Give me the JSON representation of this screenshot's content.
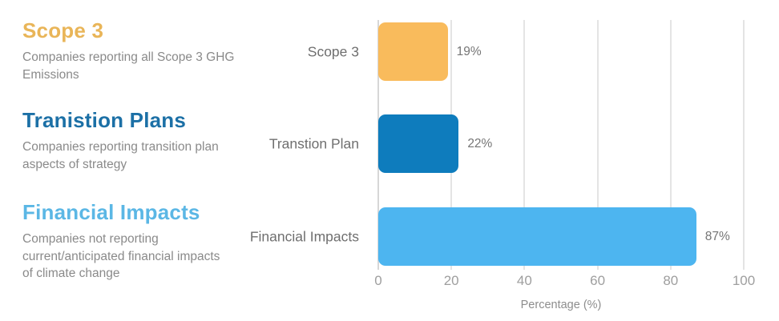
{
  "left_panel": {
    "sections": [
      {
        "title": "Scope 3",
        "title_color": "#E9B558",
        "description": "Companies reporting all Scope 3 GHG\nEmissions"
      },
      {
        "title": "Tranistion Plans",
        "title_color": "#1C70A6",
        "description": "Companies reporting transition plan\naspects of strategy"
      },
      {
        "title": "Financial Impacts",
        "title_color": "#5BB7E5",
        "description": "Companies  not reporting\ncurrent/anticipated financial impacts\nof climate change"
      }
    ]
  },
  "chart_data": {
    "type": "bar",
    "orientation": "horizontal",
    "categories": [
      "Scope 3",
      "Transtion Plan",
      "Financial Impacts"
    ],
    "values": [
      19,
      22,
      87
    ],
    "value_labels": [
      "19%",
      "22%",
      "87%"
    ],
    "bar_colors": [
      "#F9BB5C",
      "#0E7CBD",
      "#4DB5F0"
    ],
    "xlabel": "Percentage (%)",
    "xlim": [
      0,
      100
    ],
    "xticks": [
      0,
      20,
      40,
      60,
      80,
      100
    ],
    "legend_position": "none",
    "grid": "vertical"
  }
}
